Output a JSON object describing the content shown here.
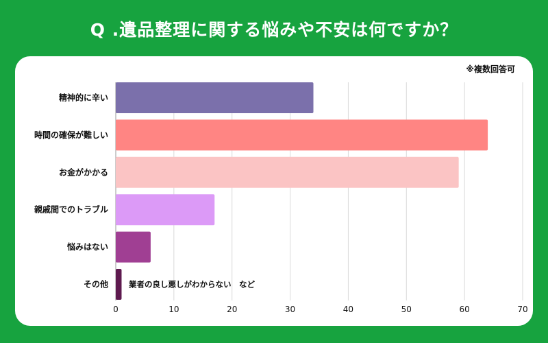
{
  "title": "Q .遺品整理に関する悩みや不安は何ですか？",
  "note": "※複数回答可",
  "chart_data": {
    "type": "bar",
    "orientation": "horizontal",
    "categories": [
      "精神的に辛い",
      "時間の確保が難しい",
      "お金がかかる",
      "親戚間でのトラブル",
      "悩みはない",
      "その他"
    ],
    "values": [
      34,
      64,
      59,
      17,
      6,
      1
    ],
    "colors": [
      "#7b70ab",
      "#ff8583",
      "#fbc4c4",
      "#dc9af7",
      "#a03f93",
      "#5e1a4f"
    ],
    "xlim": [
      0,
      70
    ],
    "xticks": [
      0,
      10,
      20,
      30,
      40,
      50,
      60,
      70
    ],
    "grid": true,
    "annotations": [
      {
        "category": "その他",
        "text": "業者の良し悪しがわからない　など"
      }
    ]
  },
  "colors": {
    "background": "#17a33f",
    "panel": "#ffffff",
    "grid": "#d9d9d9"
  }
}
